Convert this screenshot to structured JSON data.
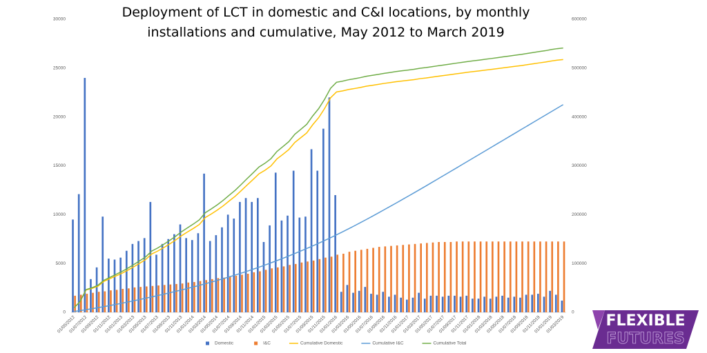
{
  "chart_data": {
    "type": "bar-line",
    "title": "Deployment of LCT in domestic and C&I locations, by monthly installations and cumulative, May 2012 to March 2019",
    "categories": [
      "01/05/2012",
      null,
      "01/07/2012",
      null,
      "01/09/2012",
      null,
      "01/11/2012",
      null,
      "01/01/2013",
      null,
      "01/03/2013",
      null,
      "01/05/2013",
      null,
      "01/07/2013",
      null,
      "01/09/2013",
      null,
      "01/11/2013",
      null,
      "01/01/2014",
      null,
      "01/03/2014",
      null,
      "01/05/2014",
      null,
      "01/07/2014",
      null,
      "01/09/2014",
      null,
      "01/11/2014",
      null,
      "01/01/2015",
      null,
      "01/03/2015",
      null,
      "01/05/2015",
      null,
      "01/07/2015",
      null,
      "01/09/2015",
      null,
      "01/11/2015",
      null,
      "01/01/2016",
      null,
      "01/03/2016",
      null,
      "01/05/2016",
      null,
      "01/07/2016",
      null,
      "01/09/2016",
      null,
      "01/11/2016",
      null,
      "01/01/2017",
      null,
      "01/03/2017",
      null,
      "01/05/2017",
      null,
      "01/07/2017",
      null,
      "01/09/2017",
      null,
      "01/11/2017",
      null,
      "01/01/2018",
      null,
      "01/03/2018",
      null,
      "01/05/2018",
      null,
      "01/07/2018",
      null,
      "01/09/2018",
      null,
      "01/11/2018",
      null,
      "01/01/2019",
      null,
      "01/03/2019"
    ],
    "ylim": [
      0,
      30000
    ],
    "yticks": [
      0,
      5000,
      10000,
      15000,
      20000,
      25000,
      30000
    ],
    "y2lim": [
      0,
      600000
    ],
    "y2ticks": [
      0,
      100000,
      200000,
      300000,
      400000,
      500000,
      600000
    ],
    "legend": "bottom",
    "series": [
      {
        "name": "Domestic",
        "type": "bar",
        "color": "#4472c4",
        "values": [
          9500,
          12100,
          24000,
          3400,
          4600,
          9800,
          5500,
          5400,
          5600,
          6300,
          7000,
          7300,
          7600,
          11300,
          5900,
          7000,
          7500,
          8000,
          9000,
          7600,
          7400,
          8100,
          14200,
          7300,
          7900,
          8700,
          10000,
          9600,
          11300,
          11700,
          11300,
          11700,
          7200,
          8900,
          14300,
          9400,
          9900,
          14500,
          9700,
          9800,
          16700,
          14500,
          18800,
          22000,
          12000,
          2100,
          2800,
          2000,
          2200,
          2600,
          1900,
          1800,
          2100,
          1600,
          1800,
          1500,
          1300,
          1500,
          2000,
          1400,
          1700,
          1700,
          1600,
          1700,
          1700,
          1600,
          1700,
          1400,
          1400,
          1600,
          1400,
          1600,
          1700,
          1500,
          1600,
          1500,
          1800,
          1800,
          1900,
          1600,
          2200,
          1800,
          1200
        ]
      },
      {
        "name": "I&C",
        "type": "bar",
        "color": "#ed7d31",
        "values": [
          1700,
          1800,
          1900,
          2000,
          2100,
          2150,
          2250,
          2300,
          2400,
          2450,
          2550,
          2600,
          2650,
          2700,
          2750,
          2800,
          2850,
          2900,
          2950,
          3050,
          3100,
          3200,
          3300,
          3400,
          3500,
          3550,
          3650,
          3750,
          3850,
          3950,
          4100,
          4200,
          4350,
          4500,
          4600,
          4700,
          4850,
          4950,
          5100,
          5200,
          5300,
          5450,
          5600,
          5700,
          5900,
          6000,
          6200,
          6300,
          6400,
          6500,
          6600,
          6700,
          6750,
          6800,
          6850,
          6900,
          6950,
          7000,
          7050,
          7100,
          7150,
          7200,
          7200,
          7200,
          7250,
          7250,
          7250,
          7250,
          7250,
          7250,
          7250,
          7250,
          7250,
          7250,
          7250,
          7250,
          7250,
          7250,
          7250,
          7250,
          7250,
          7250,
          7250
        ]
      },
      {
        "name": "Cumulative Domestic",
        "type": "line",
        "axis": "y2",
        "color": "#ffc000",
        "values": [
          9500,
          21600,
          45600,
          49000,
          53600,
          63400,
          68900,
          74300,
          79900,
          86200,
          93200,
          100500,
          108100,
          119400,
          125300,
          132300,
          139800,
          147800,
          156800,
          164400,
          171800,
          179900,
          194100,
          201400,
          209300,
          218000,
          228000,
          237600,
          248900,
          260600,
          271900,
          283600,
          290800,
          299700,
          314000,
          323400,
          333300,
          347800,
          357500,
          367300,
          384000,
          398500,
          417300,
          439300,
          451300,
          453400,
          456200,
          458200,
          460400,
          463000,
          464900,
          466700,
          468800,
          470400,
          472200,
          473700,
          475000,
          476500,
          478500,
          479900,
          481600,
          483300,
          484900,
          486600,
          488300,
          489900,
          491600,
          493000,
          494400,
          496000,
          497400,
          499000,
          500700,
          502200,
          503800,
          505300,
          507100,
          508900,
          510800,
          512400,
          514600,
          516400,
          517600
        ]
      },
      {
        "name": "Cumulative I&C",
        "type": "line",
        "axis": "y2",
        "color": "#5b9bd5",
        "values": [
          1700,
          3500,
          5400,
          7400,
          9500,
          11700,
          13900,
          16200,
          18600,
          21100,
          23600,
          26200,
          28900,
          31600,
          34300,
          37100,
          40000,
          42900,
          45800,
          48900,
          52000,
          55200,
          58500,
          61900,
          65400,
          68900,
          72600,
          76300,
          80200,
          84100,
          88200,
          92400,
          96800,
          101300,
          105900,
          110600,
          115400,
          120400,
          125500,
          130700,
          136000,
          141500,
          147100,
          152800,
          158700,
          164700,
          170900,
          177200,
          183600,
          190100,
          196700,
          203400,
          210200,
          217000,
          223800,
          230700,
          237700,
          244700,
          251700,
          258800,
          266000,
          273200,
          280400,
          287600,
          294800,
          302100,
          309300,
          316600,
          323800,
          331100,
          338300,
          345600,
          352800,
          360100,
          367300,
          374600,
          381800,
          389100,
          396300,
          403600,
          410800,
          418100,
          425300
        ]
      },
      {
        "name": "Cumulative Total",
        "type": "line",
        "axis": "y2",
        "color": "#70ad47",
        "values": [
          9500,
          22100,
          46500,
          50400,
          55400,
          65700,
          71600,
          77500,
          83500,
          90300,
          97700,
          105500,
          113500,
          125300,
          131600,
          139100,
          147000,
          155500,
          164900,
          173000,
          180800,
          189400,
          204000,
          211800,
          220100,
          229300,
          239700,
          249800,
          261500,
          273700,
          285400,
          297600,
          305200,
          314600,
          329300,
          339200,
          349500,
          364500,
          374600,
          384900,
          402000,
          417000,
          436200,
          458700,
          471100,
          473300,
          476200,
          478300,
          480600,
          483300,
          485300,
          487200,
          489400,
          491100,
          493000,
          494600,
          496000,
          497600,
          499700,
          501200,
          503000,
          504800,
          506500,
          508300,
          510100,
          511800,
          513600,
          515100,
          516600,
          518300,
          519800,
          521500,
          523300,
          524900,
          526600,
          528200,
          530100,
          532000,
          534000,
          535700,
          538000,
          539900,
          541200
        ]
      }
    ]
  },
  "logo": {
    "line1": "FLEXIBLE",
    "line2": "FUTURES"
  }
}
